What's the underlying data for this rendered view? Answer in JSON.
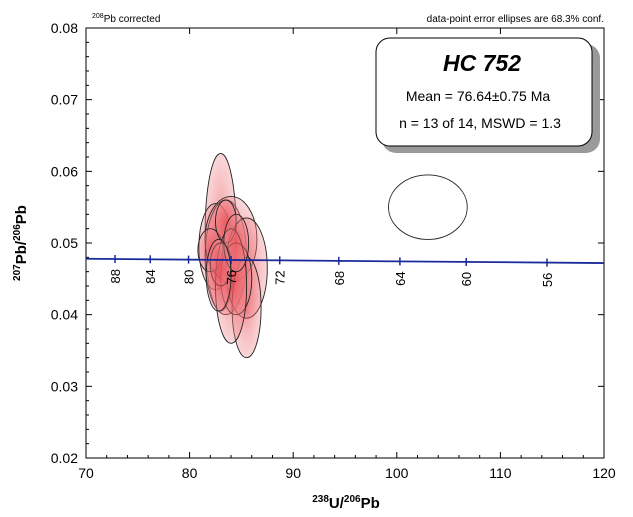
{
  "chart_data": {
    "type": "scatter",
    "subtype": "Tera-Wasserburg concordia diagram with 68.3% error ellipses",
    "xlabel": "238U/206Pb",
    "ylabel": "207Pb/206Pb",
    "xlim": [
      70,
      120
    ],
    "ylim": [
      0.02,
      0.08
    ],
    "x_ticks": [
      70,
      80,
      90,
      100,
      110,
      120
    ],
    "y_ticks": [
      "0.02",
      "0.03",
      "0.04",
      "0.05",
      "0.06",
      "0.07",
      "0.08"
    ],
    "notes": {
      "top_left": "208Pb corrected",
      "top_right": "data-point error ellipses are 68.3% conf."
    },
    "annotation_box": {
      "title": "HC 752",
      "mean": "Mean = 76.64±0.75 Ma",
      "stats": "n = 13 of 14, MSWD = 1.3"
    },
    "concordia_line": {
      "color": "#1a2a9a",
      "from": [
        70,
        0.0478
      ],
      "to": [
        120,
        0.0472
      ],
      "age_labels": [
        {
          "label": "88",
          "x": 72.8
        },
        {
          "label": "84",
          "x": 76.2
        },
        {
          "label": "80",
          "x": 79.9
        },
        {
          "label": "76",
          "x": 84.0
        },
        {
          "label": "72",
          "x": 88.7
        },
        {
          "label": "68",
          "x": 94.4
        },
        {
          "label": "64",
          "x": 100.3
        },
        {
          "label": "60",
          "x": 106.7
        },
        {
          "label": "56",
          "x": 114.5
        }
      ]
    },
    "ellipses": [
      {
        "cx": 83.0,
        "cy": 0.0515,
        "rx": 1.5,
        "ry": 0.011,
        "included": true
      },
      {
        "cx": 82.5,
        "cy": 0.0495,
        "rx": 1.6,
        "ry": 0.006,
        "included": true
      },
      {
        "cx": 83.5,
        "cy": 0.048,
        "rx": 2.0,
        "ry": 0.008,
        "included": true
      },
      {
        "cx": 84.0,
        "cy": 0.0505,
        "rx": 2.5,
        "ry": 0.006,
        "included": true
      },
      {
        "cx": 82.0,
        "cy": 0.049,
        "rx": 1.2,
        "ry": 0.003,
        "included": true
      },
      {
        "cx": 85.5,
        "cy": 0.0465,
        "rx": 2.0,
        "ry": 0.007,
        "included": true
      },
      {
        "cx": 85.5,
        "cy": 0.041,
        "rx": 1.4,
        "ry": 0.007,
        "included": true
      },
      {
        "cx": 84.5,
        "cy": 0.045,
        "rx": 1.5,
        "ry": 0.005,
        "included": true
      },
      {
        "cx": 83.5,
        "cy": 0.053,
        "rx": 1.0,
        "ry": 0.003,
        "included": true
      },
      {
        "cx": 84.0,
        "cy": 0.044,
        "rx": 1.5,
        "ry": 0.008,
        "included": true
      },
      {
        "cx": 83.0,
        "cy": 0.047,
        "rx": 1.0,
        "ry": 0.003,
        "included": true
      },
      {
        "cx": 84.5,
        "cy": 0.05,
        "rx": 1.2,
        "ry": 0.004,
        "included": true
      },
      {
        "cx": 82.8,
        "cy": 0.0455,
        "rx": 1.2,
        "ry": 0.005,
        "included": true
      },
      {
        "cx": 103.0,
        "cy": 0.055,
        "rx": 3.8,
        "ry": 0.0045,
        "included": false
      }
    ],
    "grid": false,
    "legend": "none"
  }
}
